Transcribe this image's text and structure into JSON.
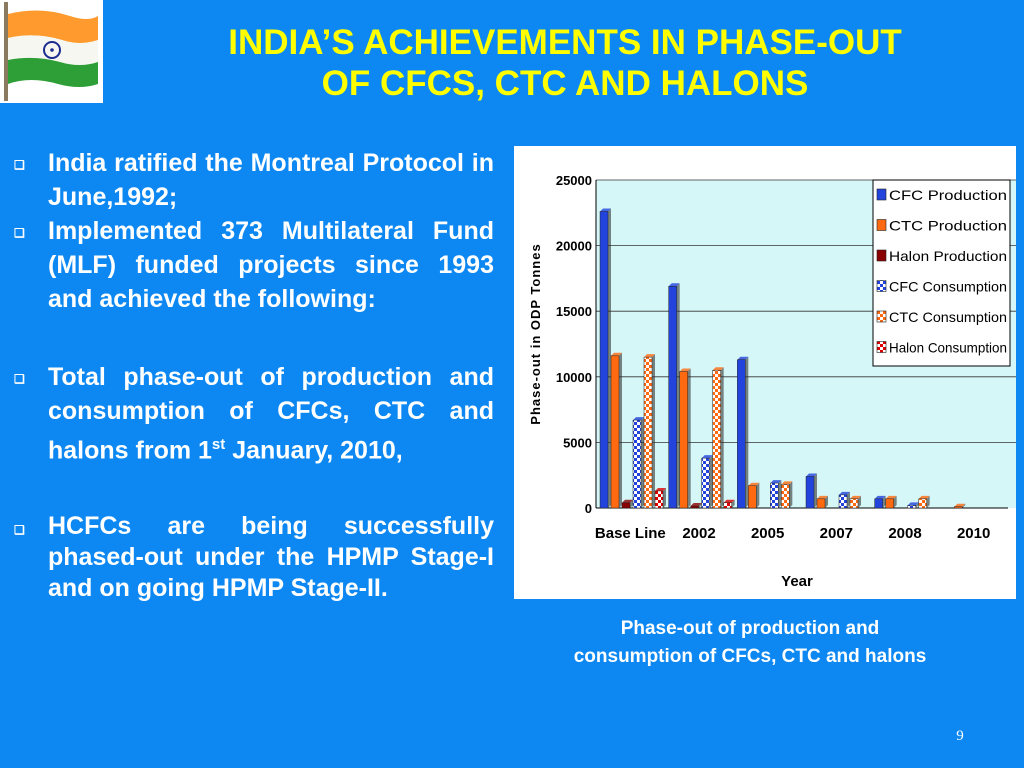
{
  "title": {
    "line1": "INDIA’S ACHIEVEMENTS IN PHASE-OUT",
    "line2": "OF CFCS, CTC AND HALONS"
  },
  "bullet_marker": "❑",
  "bullets": {
    "b1": "India ratified the Montreal Protocol in June,1992;",
    "b2": "Implemented 373 Multilateral Fund (MLF) funded projects since 1993 and achieved the following:",
    "b3_main": "Total phase-out of production and consumption of CFCs, CTC and halons from 1",
    "b3_sup": "st",
    "b3_end": " January, 2010,",
    "b4": "HCFCs are being successfully phased-out under the HPMP Stage-I and on going HPMP Stage-II."
  },
  "caption": "Phase-out of production and consumption of CFCs, CTC and halons",
  "page_number": "9",
  "colors": {
    "background": "#0d88f2",
    "title": "#ffff00",
    "text": "#ffffff",
    "plot_bg": "#d6f7f8"
  },
  "chart_data": {
    "type": "bar",
    "title": "",
    "xlabel": "Year",
    "ylabel": "Phase-out in ODP Tonnes",
    "ylim": [
      0,
      25000
    ],
    "yticks": [
      "0",
      "5000",
      "10000",
      "15000",
      "20000",
      "25000"
    ],
    "categories": [
      "Base Line",
      "2002",
      "2005",
      "2007",
      "2008",
      "2010"
    ],
    "legend_position": "top-right",
    "grid": true,
    "series": [
      {
        "name": "CFC Production",
        "color": "#2244dd",
        "pattern": "solid",
        "values": [
          22600,
          16900,
          11300,
          2400,
          700,
          0
        ]
      },
      {
        "name": "CTC Production",
        "color": "#ff6a10",
        "pattern": "solid",
        "values": [
          11600,
          10400,
          1700,
          700,
          700,
          100
        ]
      },
      {
        "name": "Halon Production",
        "color": "#8b0000",
        "pattern": "solid",
        "values": [
          400,
          150,
          0,
          0,
          0,
          0
        ]
      },
      {
        "name": "CFC Consumption",
        "color": "#2244dd",
        "pattern": "checker",
        "values": [
          6700,
          3800,
          1900,
          1000,
          200,
          0
        ]
      },
      {
        "name": "CTC Consumption",
        "color": "#ff6a10",
        "pattern": "checker",
        "values": [
          11500,
          10500,
          1800,
          700,
          700,
          0
        ]
      },
      {
        "name": "Halon Consumption",
        "color": "#dd0000",
        "pattern": "checker",
        "values": [
          1300,
          400,
          0,
          0,
          0,
          0
        ]
      }
    ]
  }
}
